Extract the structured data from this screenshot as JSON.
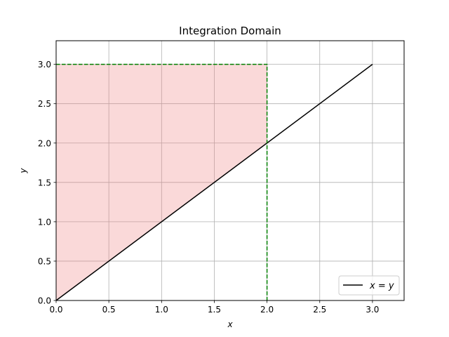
{
  "chart_data": {
    "type": "line",
    "title": "Integration Domain",
    "xlabel": "x",
    "ylabel": "y",
    "xlim": [
      0,
      3.3
    ],
    "ylim": [
      0,
      3.3
    ],
    "grid": true,
    "legend_position": "lower-right",
    "xticks": [
      "0.0",
      "0.5",
      "1.0",
      "1.5",
      "2.0",
      "2.5",
      "3.0"
    ],
    "yticks": [
      "0.0",
      "0.5",
      "1.0",
      "1.5",
      "2.0",
      "2.5",
      "3.0"
    ],
    "series": [
      {
        "name": "x = y",
        "x": [
          0,
          3
        ],
        "y": [
          0,
          3
        ],
        "color": "#000000",
        "style": "solid"
      }
    ],
    "shaded_region": {
      "vertices": [
        [
          0,
          0
        ],
        [
          2,
          2
        ],
        [
          2,
          3
        ],
        [
          0,
          3
        ]
      ],
      "color": "#f08080",
      "alpha": 0.3
    },
    "boundary": {
      "x": [
        0,
        2,
        2
      ],
      "y": [
        3,
        3,
        0
      ],
      "color": "#008000",
      "style": "dashed"
    }
  },
  "legend": {
    "lhs": "x",
    "eq": " = ",
    "rhs": "y"
  }
}
